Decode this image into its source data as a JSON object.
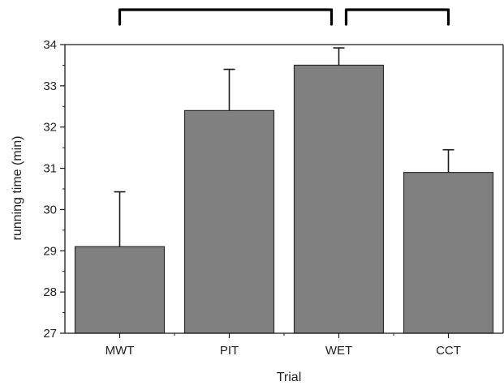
{
  "chart_data": {
    "type": "bar",
    "title": "",
    "xlabel": "Trial",
    "ylabel": "running time (min)",
    "categories": [
      "MWT",
      "PIT",
      "WET",
      "CCT"
    ],
    "values": [
      29.1,
      32.4,
      33.5,
      30.9
    ],
    "error_plus": [
      1.33,
      1.0,
      0.42,
      0.55
    ],
    "ylim": [
      27,
      34
    ],
    "yticks": [
      27,
      28,
      29,
      30,
      31,
      32,
      33,
      34
    ],
    "grid": false,
    "legend": "none",
    "significance_brackets": [
      {
        "from": "MWT",
        "to": "WET"
      },
      {
        "from": "WET",
        "to": "CCT"
      }
    ],
    "colors": {
      "bar_fill": "#808080",
      "bar_stroke": "#2b2b2b",
      "axis": "#1a1a1a",
      "bracket": "#000000"
    }
  }
}
